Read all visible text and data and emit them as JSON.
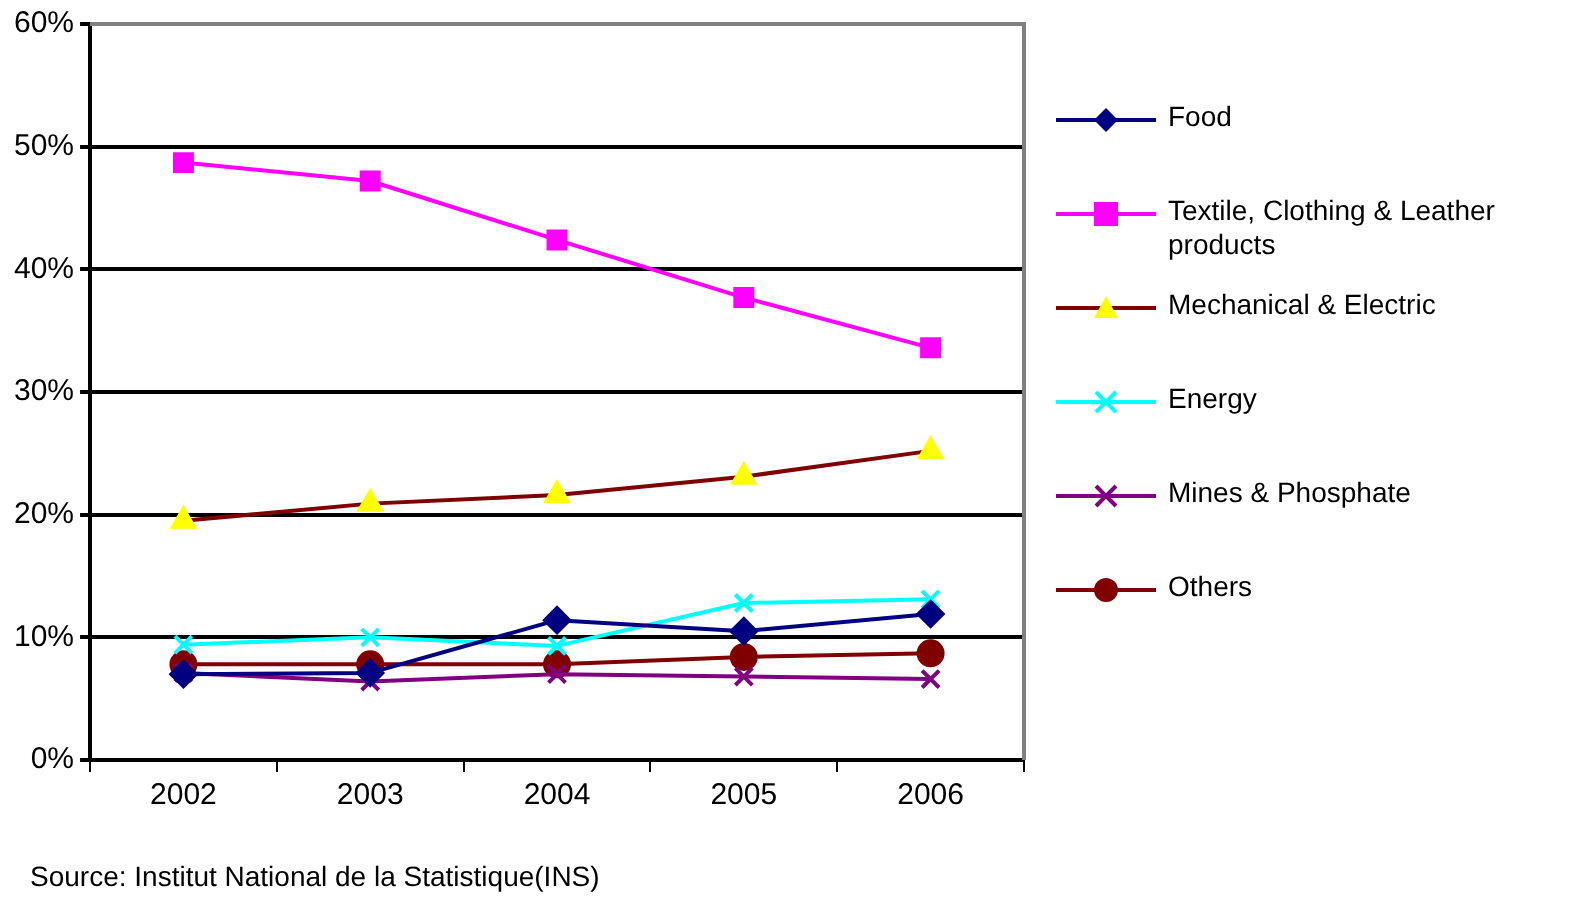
{
  "chart_data": {
    "type": "line",
    "categories": [
      "2002",
      "2003",
      "2004",
      "2005",
      "2006"
    ],
    "series": [
      {
        "name": "Food",
        "color": "#000080",
        "marker": "diamond",
        "values": [
          7.0,
          7.1,
          11.4,
          10.5,
          11.9
        ]
      },
      {
        "name": "Textile, Clothing & Leather products",
        "color": "#ff00ff",
        "marker": "square",
        "values": [
          48.7,
          47.2,
          42.4,
          37.7,
          33.6
        ]
      },
      {
        "name": "Mechanical & Electric",
        "color": "#800000",
        "colors": [
          "#ffff00",
          "#ffff00",
          "#ffff00",
          "#ffff00",
          "#ffff00"
        ],
        "marker": "triangle",
        "values": [
          19.5,
          20.9,
          21.6,
          23.1,
          25.2
        ]
      },
      {
        "name": "Energy",
        "color": "#00ffff",
        "marker": "cross",
        "values": [
          9.4,
          10.0,
          9.3,
          12.8,
          13.1
        ]
      },
      {
        "name": "Mines & Phosphate",
        "color": "#800080",
        "marker": "cross",
        "values": [
          7.1,
          6.4,
          7.0,
          6.8,
          6.6
        ]
      },
      {
        "name": "Others",
        "color": "#800000",
        "marker": "circle",
        "values": [
          7.8,
          7.8,
          7.8,
          8.4,
          8.7
        ]
      }
    ],
    "ylim": [
      0,
      60
    ],
    "yticks": [
      {
        "value": 0,
        "label": "0%"
      },
      {
        "value": 10,
        "label": "10%"
      },
      {
        "value": 20,
        "label": "20%"
      },
      {
        "value": 30,
        "label": "30%"
      },
      {
        "value": 40,
        "label": "40%"
      },
      {
        "value": 50,
        "label": "50%"
      },
      {
        "value": 60,
        "label": "60%"
      }
    ],
    "grid": "y",
    "legend": "right",
    "annotations": [
      "Source: Institut National de la Statistique(INS)"
    ]
  }
}
